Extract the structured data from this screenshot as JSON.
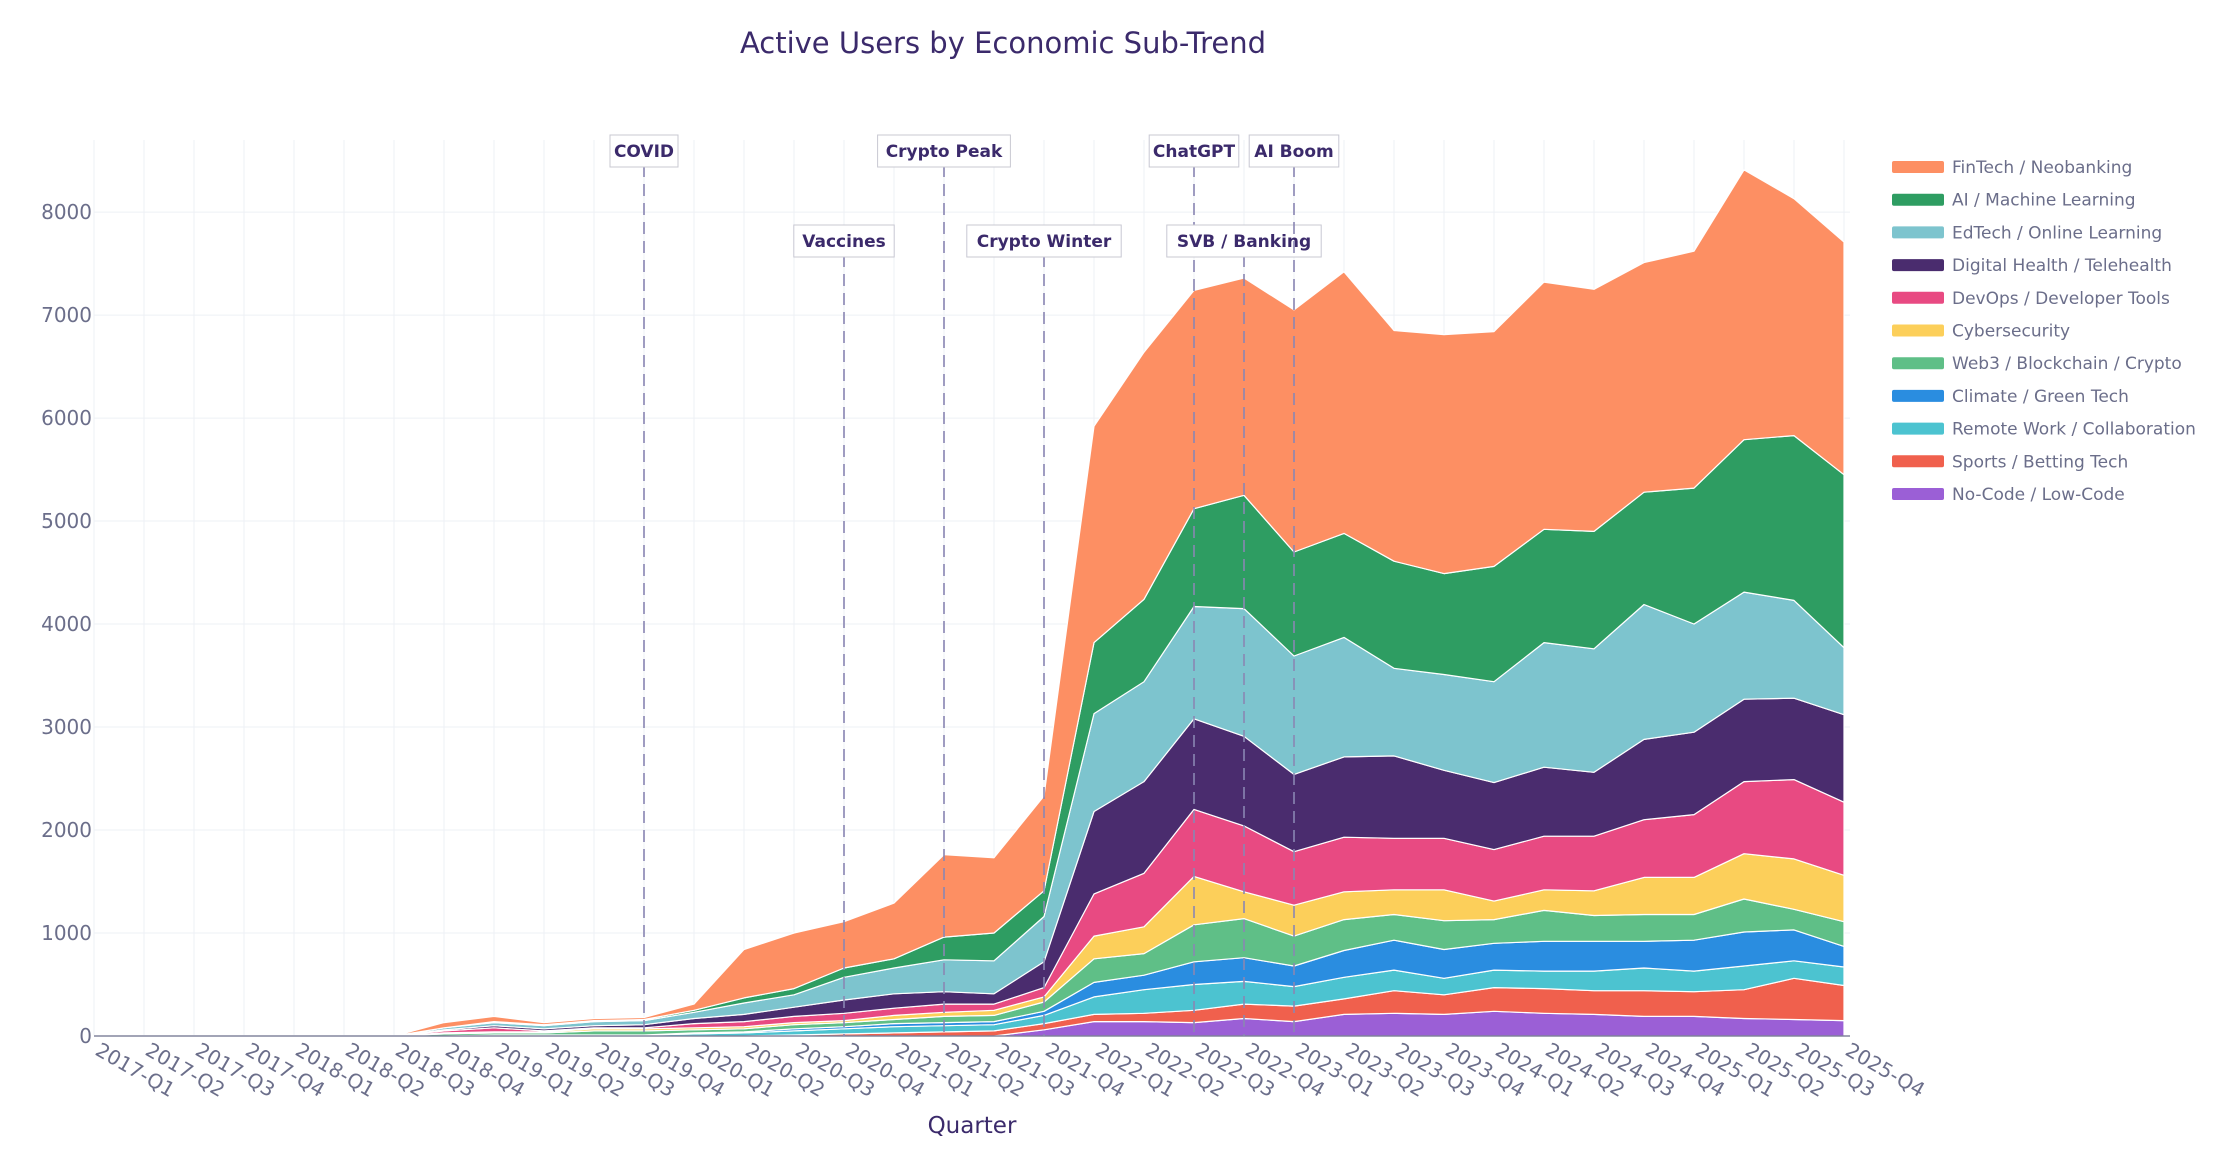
{
  "chart_data": {
    "type": "area",
    "stacked": true,
    "title": "Active Users by Economic Sub-Trend",
    "xlabel": "Quarter",
    "ylabel": "",
    "ylim": [
      0,
      8700
    ],
    "yticks": [
      0,
      1000,
      2000,
      3000,
      4000,
      5000,
      6000,
      7000,
      8000
    ],
    "grid": true,
    "legend_position": "right",
    "categories": [
      "2017-Q1",
      "2017-Q2",
      "2017-Q3",
      "2017-Q4",
      "2018-Q1",
      "2018-Q2",
      "2018-Q3",
      "2018-Q4",
      "2019-Q1",
      "2019-Q2",
      "2019-Q3",
      "2019-Q4",
      "2020-Q1",
      "2020-Q2",
      "2020-Q3",
      "2020-Q4",
      "2021-Q1",
      "2021-Q2",
      "2021-Q3",
      "2021-Q4",
      "2022-Q1",
      "2022-Q2",
      "2022-Q3",
      "2022-Q4",
      "2023-Q1",
      "2023-Q2",
      "2023-Q3",
      "2023-Q4",
      "2024-Q1",
      "2024-Q2",
      "2024-Q3",
      "2024-Q4",
      "2025-Q1",
      "2025-Q2",
      "2025-Q3",
      "2025-Q4"
    ],
    "series": [
      {
        "name": "No-Code / Low-Code",
        "color": "#9b5fd6",
        "values": [
          0,
          0,
          0,
          0,
          0,
          0,
          0,
          0,
          0,
          0,
          0,
          0,
          0,
          0,
          0,
          0,
          0,
          0,
          0,
          60,
          140,
          140,
          130,
          170,
          140,
          210,
          220,
          210,
          240,
          220,
          210,
          190,
          190,
          170,
          160,
          150
        ]
      },
      {
        "name": "Sports / Betting Tech",
        "color": "#f0604d",
        "values": [
          0,
          0,
          0,
          0,
          0,
          0,
          0,
          0,
          0,
          0,
          0,
          0,
          0,
          0,
          10,
          20,
          30,
          40,
          50,
          60,
          70,
          80,
          120,
          140,
          150,
          150,
          220,
          190,
          230,
          240,
          230,
          250,
          240,
          280,
          400,
          340
        ]
      },
      {
        "name": "Remote Work / Collaboration",
        "color": "#4cc3d0",
        "values": [
          0,
          0,
          0,
          0,
          0,
          0,
          0,
          0,
          10,
          10,
          10,
          10,
          20,
          30,
          40,
          50,
          60,
          60,
          60,
          80,
          170,
          230,
          250,
          220,
          190,
          210,
          200,
          160,
          170,
          170,
          190,
          220,
          200,
          230,
          170,
          180
        ]
      },
      {
        "name": "Climate / Green Tech",
        "color": "#2a8de0",
        "values": [
          0,
          0,
          0,
          0,
          0,
          0,
          0,
          0,
          0,
          0,
          0,
          0,
          10,
          10,
          20,
          20,
          30,
          30,
          30,
          40,
          140,
          140,
          220,
          230,
          200,
          260,
          290,
          280,
          260,
          290,
          290,
          260,
          300,
          330,
          300,
          200
        ]
      },
      {
        "name": "Web3 / Blockchain / Crypto",
        "color": "#5fbf87",
        "values": [
          0,
          0,
          0,
          0,
          0,
          0,
          0,
          20,
          20,
          20,
          40,
          40,
          30,
          30,
          40,
          40,
          40,
          60,
          60,
          90,
          230,
          210,
          360,
          380,
          290,
          300,
          250,
          280,
          230,
          300,
          250,
          260,
          250,
          320,
          200,
          240
        ]
      },
      {
        "name": "Cybersecurity",
        "color": "#fccf5a",
        "values": [
          0,
          0,
          0,
          0,
          0,
          0,
          0,
          10,
          10,
          10,
          20,
          20,
          20,
          20,
          20,
          20,
          40,
          40,
          50,
          50,
          220,
          260,
          470,
          260,
          300,
          270,
          240,
          300,
          180,
          200,
          240,
          360,
          360,
          440,
          490,
          450
        ]
      },
      {
        "name": "DevOps / Developer Tools",
        "color": "#e84a82",
        "values": [
          0,
          0,
          0,
          0,
          0,
          0,
          0,
          20,
          40,
          10,
          10,
          10,
          40,
          50,
          60,
          70,
          70,
          80,
          60,
          90,
          410,
          520,
          650,
          640,
          520,
          530,
          500,
          500,
          500,
          520,
          530,
          560,
          610,
          700,
          770,
          710
        ]
      },
      {
        "name": "Digital Health / Telehealth",
        "color": "#4a2c6e",
        "values": [
          0,
          0,
          0,
          0,
          0,
          0,
          0,
          10,
          20,
          20,
          20,
          30,
          50,
          70,
          90,
          130,
          140,
          120,
          100,
          250,
          800,
          890,
          880,
          870,
          750,
          780,
          800,
          660,
          650,
          670,
          620,
          780,
          800,
          800,
          790,
          850
        ]
      },
      {
        "name": "EdTech / Online Learning",
        "color": "#7dc4ce",
        "values": [
          0,
          0,
          0,
          0,
          0,
          0,
          0,
          20,
          30,
          30,
          40,
          40,
          60,
          110,
          120,
          220,
          250,
          310,
          320,
          440,
          950,
          970,
          1090,
          1240,
          1150,
          1160,
          850,
          930,
          980,
          1210,
          1200,
          1310,
          1050,
          1040,
          950,
          650
        ]
      },
      {
        "name": "AI / Machine Learning",
        "color": "#2e9d62",
        "values": [
          0,
          0,
          0,
          0,
          0,
          0,
          0,
          0,
          10,
          10,
          10,
          10,
          20,
          50,
          60,
          90,
          90,
          220,
          270,
          250,
          690,
          800,
          950,
          1100,
          1010,
          1010,
          1040,
          980,
          1120,
          1100,
          1140,
          1090,
          1320,
          1480,
          1600,
          1680
        ]
      },
      {
        "name": "FinTech / Neobanking",
        "color": "#fd8f63",
        "values": [
          0,
          0,
          0,
          0,
          0,
          0,
          0,
          50,
          50,
          20,
          20,
          20,
          60,
          470,
          540,
          450,
          540,
          800,
          730,
          920,
          2100,
          2400,
          2120,
          2110,
          2350,
          2540,
          2240,
          2320,
          2280,
          2400,
          2350,
          2230,
          2300,
          2620,
          2300,
          2260
        ]
      }
    ],
    "events": [
      {
        "label": "COVID",
        "at": "2019-Q4",
        "row": 1
      },
      {
        "label": "Vaccines",
        "at": "2020-Q4",
        "row": 2
      },
      {
        "label": "Crypto Peak",
        "at": "2021-Q2",
        "row": 1
      },
      {
        "label": "Crypto Winter",
        "at": "2021-Q4",
        "row": 2
      },
      {
        "label": "ChatGPT",
        "at": "2022-Q3",
        "row": 1
      },
      {
        "label": "SVB / Banking",
        "at": "2022-Q4",
        "row": 2
      },
      {
        "label": "AI Boom",
        "at": "2023-Q1",
        "row": 1
      }
    ]
  }
}
